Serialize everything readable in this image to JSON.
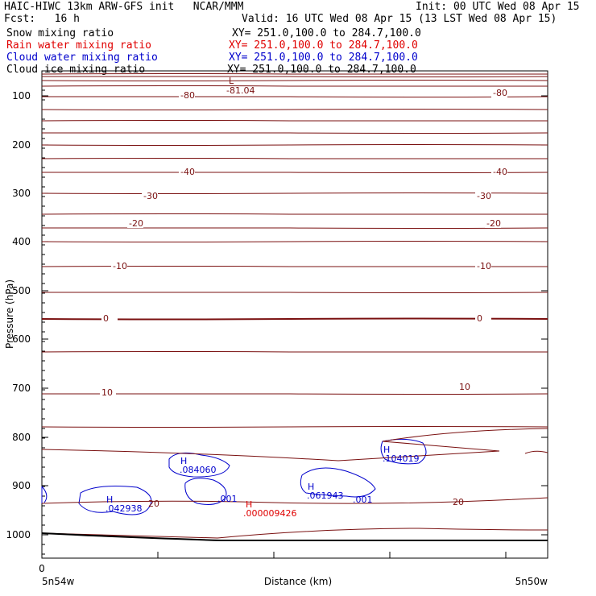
{
  "header": {
    "line1_left": "HAIC-HIWC 13km ARW-GFS init   NCAR/MMM",
    "line1_right": "Init: 00 UTC Wed 08 Apr 15",
    "fcst_label": "Fcst:   16 h",
    "valid": "Valid: 16 UTC Wed 08 Apr 15 (13 LST Wed 08 Apr 15)"
  },
  "fields": [
    {
      "name": "Snow mixing ratio",
      "xy": "XY= 251.0,100.0 to 284.7,100.0",
      "color": "#000000"
    },
    {
      "name": "Rain water mixing ratio",
      "xy": "XY= 251.0,100.0 to 284.7,100.0",
      "color": "#e00000"
    },
    {
      "name": "Cloud water mixing ratio",
      "xy": "XY= 251.0,100.0 to 284.7,100.0",
      "color": "#0000cc"
    },
    {
      "name": "Cloud ice mixing ratio",
      "xy": "XY= 251.0,100.0 to 284.7,100.0",
      "color": "#000000"
    }
  ],
  "chart_data": {
    "type": "line",
    "title": "",
    "xlabel": "Distance (km)",
    "ylabel": "Pressure (hPa)",
    "y_ticks": [
      "100",
      "200",
      "300",
      "400",
      "500",
      "600",
      "700",
      "800",
      "900",
      "1000"
    ],
    "x_tick_zero": "0",
    "x_left_label": "5n54w",
    "x_right_label": "5n50w",
    "contour_color": "#7a1010",
    "temperature_contour_labels": [
      {
        "value": "-80",
        "side": "left"
      },
      {
        "value": "-80",
        "side": "right"
      },
      {
        "value": "-40",
        "side": "left"
      },
      {
        "value": "-40",
        "side": "right"
      },
      {
        "value": "-30",
        "side": "left"
      },
      {
        "value": "-30",
        "side": "right"
      },
      {
        "value": "-20",
        "side": "left"
      },
      {
        "value": "-20",
        "side": "right"
      },
      {
        "value": "-10",
        "side": "left"
      },
      {
        "value": "-10",
        "side": "right"
      },
      {
        "value": "0",
        "side": "left"
      },
      {
        "value": "0",
        "side": "right"
      },
      {
        "value": "10",
        "side": "left"
      },
      {
        "value": "10",
        "side": "right"
      },
      {
        "value": "20",
        "side": "left"
      },
      {
        "value": "20",
        "side": "right"
      }
    ],
    "extrema": [
      {
        "mark": "L",
        "value": "-81.04",
        "color": "#7a1010"
      },
      {
        "mark": "H",
        "value": ".084060",
        "color": "#0000cc"
      },
      {
        "mark": "H",
        "value": ".104019",
        "color": "#0000cc"
      },
      {
        "mark": "H",
        "value": ".042938",
        "color": "#0000cc"
      },
      {
        "mark": "H",
        "value": ".061943",
        "color": "#0000cc"
      },
      {
        "mark": "H",
        "value": ".000009426",
        "color": "#e00000"
      }
    ],
    "cloud_contour_labels": [
      ".001",
      ".001"
    ],
    "low_contour_label": "20"
  }
}
